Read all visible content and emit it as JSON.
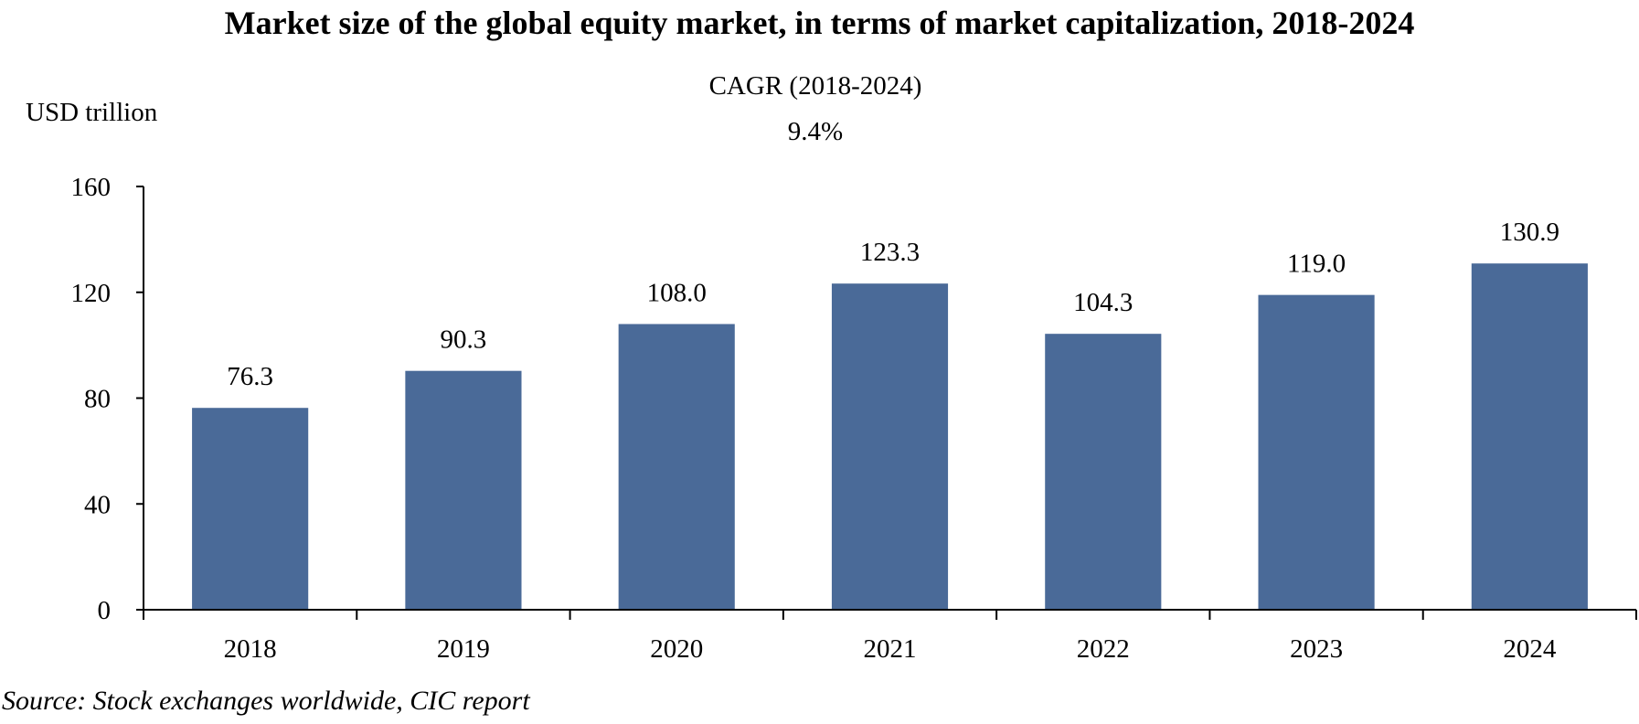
{
  "chart_data": {
    "type": "bar",
    "title": "Market size of the global equity market, in terms of market capitalization, 2018-2024",
    "ylabel": "USD trillion",
    "xlabel": "",
    "categories": [
      "2018",
      "2019",
      "2020",
      "2021",
      "2022",
      "2023",
      "2024"
    ],
    "values": [
      76.3,
      90.3,
      108.0,
      123.3,
      104.3,
      119.0,
      130.9
    ],
    "data_labels": [
      "76.3",
      "90.3",
      "108.0",
      "123.3",
      "104.3",
      "119.0",
      "130.9"
    ],
    "ylim": [
      0,
      160
    ],
    "yticks": [
      0,
      40,
      80,
      120,
      160
    ],
    "grid": false,
    "bar_color": "#4a6a98",
    "annotation": {
      "label": "CAGR (2018-2024)",
      "value": "9.4%"
    }
  },
  "source": "Source: Stock exchanges worldwide, CIC report"
}
